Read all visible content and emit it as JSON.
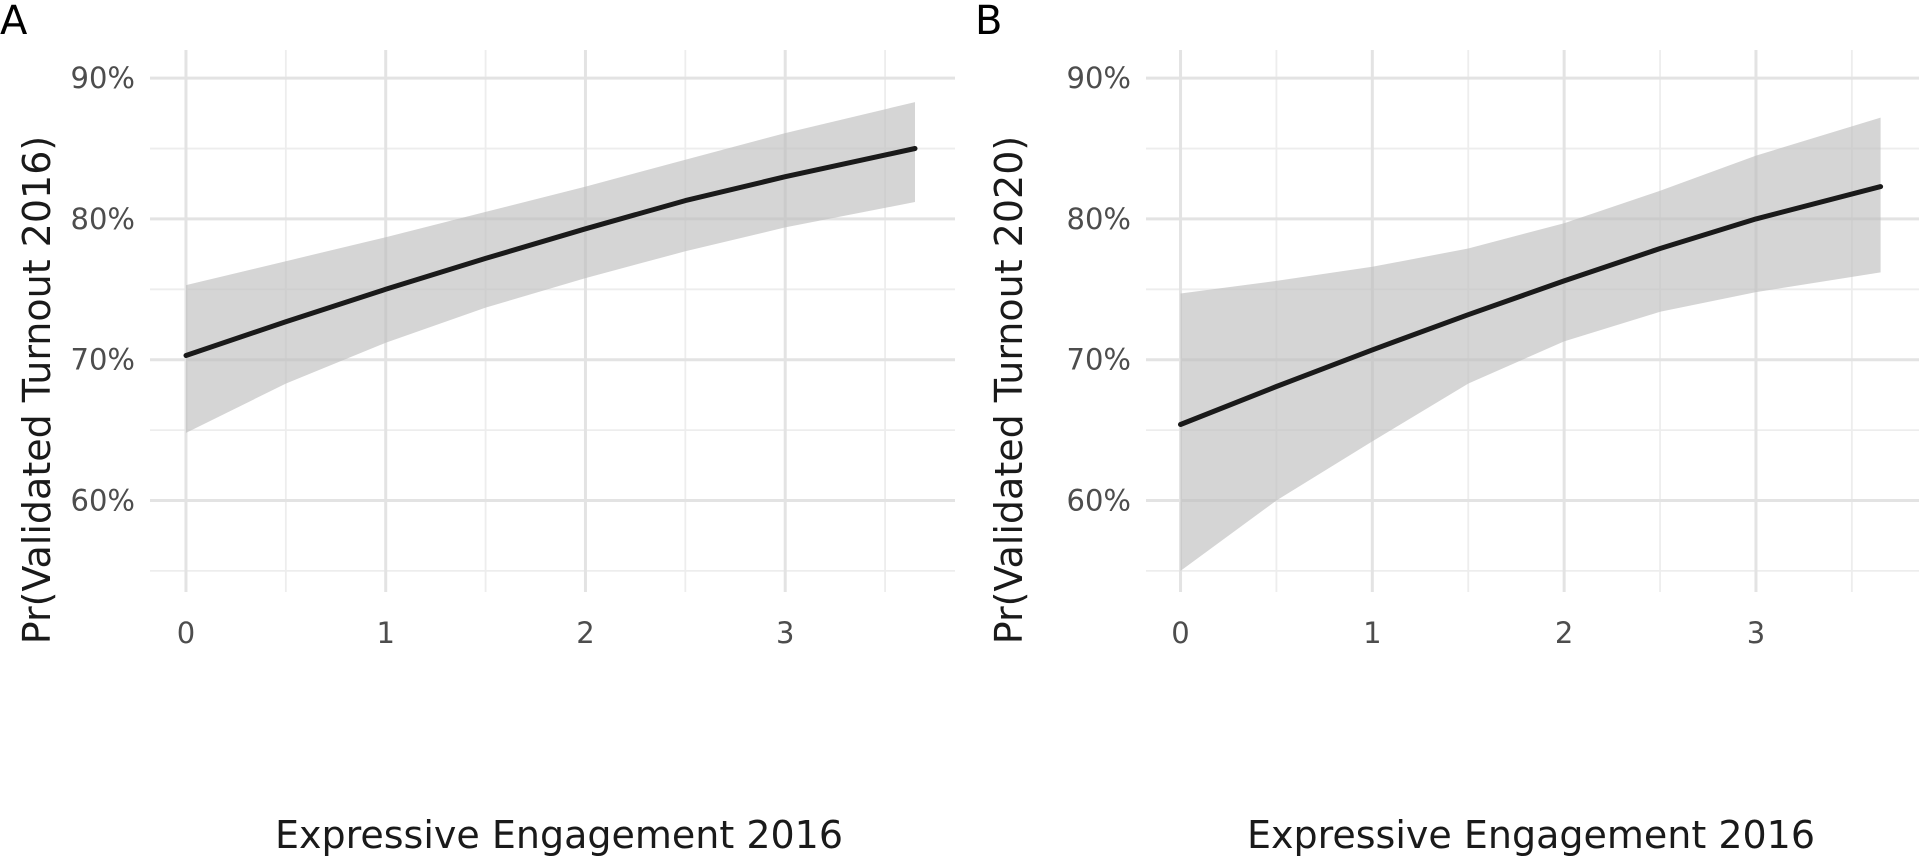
{
  "chart_data": [
    {
      "type": "line",
      "panel_tag": "A",
      "xlabel": "Expressive Engagement 2016",
      "ylabel": "Pr(Validated Turnout 2016)",
      "xlim": [
        -0.18,
        3.85
      ],
      "ylim": [
        0.535,
        0.92
      ],
      "x_ticks": [
        0,
        1,
        2,
        3
      ],
      "x_tick_labels": [
        "0",
        "1",
        "2",
        "3"
      ],
      "y_ticks": [
        0.6,
        0.7,
        0.8,
        0.9
      ],
      "y_tick_labels": [
        "60%",
        "70%",
        "80%",
        "90%"
      ],
      "grid": true,
      "series": [
        {
          "x": [
            0,
            0.5,
            1,
            1.5,
            2,
            2.5,
            3,
            3.65
          ],
          "fit": [
            0.703,
            0.727,
            0.75,
            0.772,
            0.793,
            0.813,
            0.83,
            0.85
          ],
          "lower": [
            0.648,
            0.683,
            0.712,
            0.737,
            0.758,
            0.777,
            0.794,
            0.812
          ],
          "upper": [
            0.753,
            0.77,
            0.787,
            0.805,
            0.823,
            0.842,
            0.861,
            0.883
          ]
        }
      ]
    },
    {
      "type": "line",
      "panel_tag": "B",
      "xlabel": "Expressive Engagement 2016",
      "ylabel": "Pr(Validated Turnout 2020)",
      "xlim": [
        -0.18,
        3.85
      ],
      "ylim": [
        0.535,
        0.92
      ],
      "x_ticks": [
        0,
        1,
        2,
        3
      ],
      "x_tick_labels": [
        "0",
        "1",
        "2",
        "3"
      ],
      "y_ticks": [
        0.6,
        0.7,
        0.8,
        0.9
      ],
      "y_tick_labels": [
        "60%",
        "70%",
        "80%",
        "90%"
      ],
      "grid": true,
      "series": [
        {
          "x": [
            0,
            0.5,
            1,
            1.5,
            2,
            2.5,
            3,
            3.65
          ],
          "fit": [
            0.654,
            0.681,
            0.707,
            0.732,
            0.756,
            0.779,
            0.8,
            0.823
          ],
          "lower": [
            0.55,
            0.6,
            0.642,
            0.683,
            0.713,
            0.734,
            0.748,
            0.762
          ],
          "upper": [
            0.747,
            0.756,
            0.766,
            0.779,
            0.797,
            0.82,
            0.845,
            0.872
          ]
        }
      ]
    }
  ]
}
